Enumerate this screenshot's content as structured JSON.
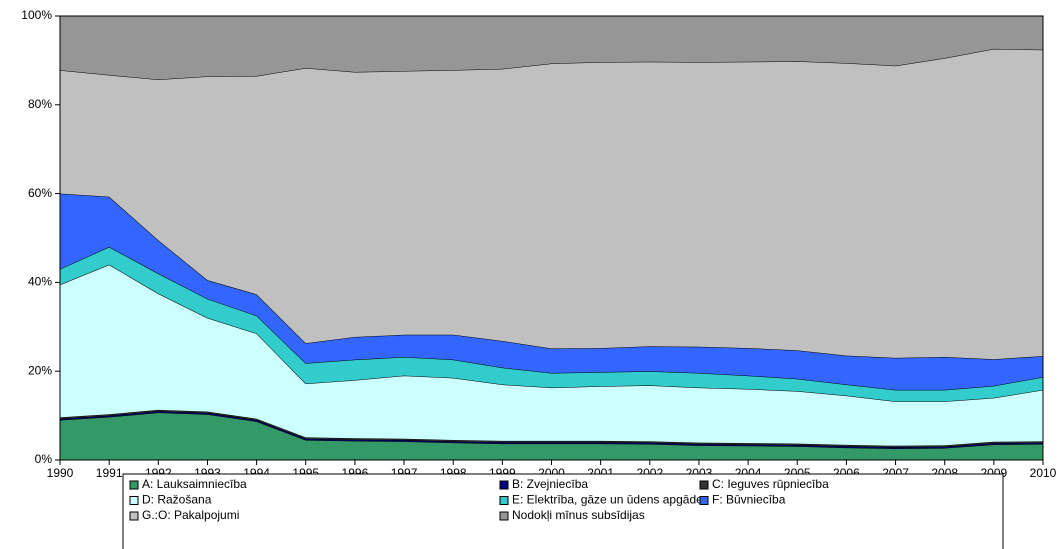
{
  "chart_data": {
    "type": "stacked_area",
    "categories": [
      "1990",
      "1991",
      "1992",
      "1993",
      "1994",
      "1995",
      "1996",
      "1997",
      "1998",
      "1999",
      "2000",
      "2001",
      "2002",
      "2003",
      "2004",
      "2005",
      "2006",
      "2007",
      "2008",
      "2009",
      "2010"
    ],
    "ylim": [
      0,
      100
    ],
    "yticks": [
      {
        "value": 0,
        "label": "0%"
      },
      {
        "value": 20,
        "label": "20%"
      },
      {
        "value": 40,
        "label": "40%"
      },
      {
        "value": 60,
        "label": "60%"
      },
      {
        "value": 80,
        "label": "80%"
      },
      {
        "value": 100,
        "label": "100%"
      }
    ],
    "series": [
      {
        "name": "A: Lauksaimniecība",
        "color": "#339966",
        "values": [
          9,
          9.7,
          10.7,
          10.3,
          8.7,
          4.5,
          4.3,
          4.2,
          3.9,
          3.7,
          3.7,
          3.7,
          3.6,
          3.3,
          3.2,
          3.1,
          2.8,
          2.6,
          2.7,
          3.5,
          3.6
        ]
      },
      {
        "name": "B: Zvejniecība",
        "color": "#000080",
        "values": [
          0.3,
          0.3,
          0.3,
          0.3,
          0.3,
          0.3,
          0.3,
          0.3,
          0.3,
          0.3,
          0.3,
          0.3,
          0.3,
          0.3,
          0.3,
          0.3,
          0.3,
          0.3,
          0.3,
          0.3,
          0.3
        ]
      },
      {
        "name": "C: Ieguves rūpniecība",
        "color": "#333333",
        "values": [
          0.3,
          0.3,
          0.3,
          0.3,
          0.3,
          0.3,
          0.3,
          0.3,
          0.3,
          0.3,
          0.3,
          0.3,
          0.3,
          0.3,
          0.3,
          0.3,
          0.3,
          0.3,
          0.3,
          0.3,
          0.3
        ]
      },
      {
        "name": "D: Ražošana",
        "color": "#ccffff",
        "values": [
          29.9,
          33.7,
          26.2,
          21.1,
          19.2,
          12.1,
          13.1,
          14.2,
          14.0,
          12.7,
          12.0,
          12.3,
          12.6,
          12.4,
          12.2,
          11.8,
          11.1,
          10.0,
          9.9,
          9.9,
          11.6
        ]
      },
      {
        "name": "E: Elektrība, gāze un ūdens apgāde",
        "color": "#33cccc",
        "values": [
          3.5,
          4,
          4.5,
          4.3,
          4,
          4.6,
          4.6,
          4.2,
          4.1,
          3.8,
          3.3,
          3.2,
          3.2,
          3.3,
          3,
          2.8,
          2.5,
          2.6,
          2.6,
          2.7,
          2.9
        ]
      },
      {
        "name": "F: Būvniecība",
        "color": "#3366ff",
        "values": [
          17,
          11.3,
          7.5,
          4.2,
          4.8,
          4.5,
          5.1,
          5,
          5.6,
          6,
          5.5,
          5.4,
          5.6,
          5.9,
          6.2,
          6.4,
          6.5,
          7.2,
          7.4,
          6,
          4.7
        ]
      },
      {
        "name": "G.:O: Pakalpojumi",
        "color": "#c0c0c0",
        "values": [
          27.8,
          27.4,
          36.2,
          45.9,
          49.2,
          62,
          59.7,
          59.4,
          59.6,
          61.3,
          64.2,
          64.4,
          64.1,
          64.1,
          64.5,
          65.1,
          65.9,
          65.8,
          67.3,
          69.9,
          69
        ]
      },
      {
        "name": "Nodokļi mīnus subsīdijas",
        "color": "#969696",
        "values": [
          12.2,
          13.3,
          14.3,
          13.6,
          13.5,
          11.7,
          12.6,
          12.4,
          12.2,
          11.9,
          10.7,
          10.4,
          10.3,
          10.4,
          10.3,
          10.2,
          10.6,
          11.2,
          9.5,
          7.4,
          7.6
        ]
      }
    ]
  }
}
